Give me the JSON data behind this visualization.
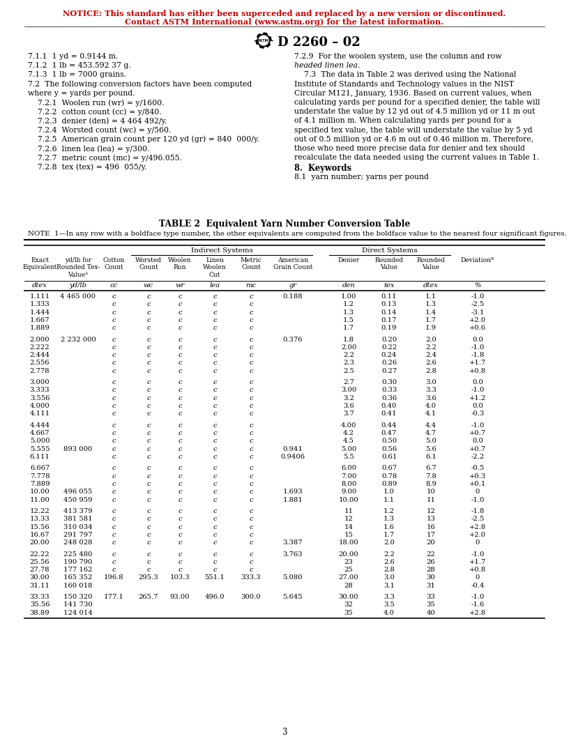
{
  "notice_line1": "NOTICE: This standard has either been superceded and replaced by a new version or discontinued.",
  "notice_line2": "Contact ASTM International (www.astm.org) for the latest information.",
  "notice_color": "#CC0000",
  "bg_color": "#ffffff",
  "table_title": "TABLE 2  Equivalent Yarn Number Conversion Table",
  "note_text": "NOTE  1—In any row with a boldface type number, the other equivalents are computed from the boldface value to the nearest four significant figures.",
  "page_number": "3",
  "table_data": [
    [
      "1.111",
      "4 465 000",
      "c",
      "c",
      "c",
      "c",
      "c",
      "0.188",
      "1.00",
      "0.11",
      "1.1",
      "-1.0"
    ],
    [
      "1.333",
      "",
      "c",
      "c",
      "c",
      "c",
      "c",
      "",
      "1.2",
      "0.13",
      "1.3",
      "-2.5"
    ],
    [
      "1.444",
      "",
      "c",
      "c",
      "c",
      "c",
      "c",
      "",
      "1.3",
      "0.14",
      "1.4",
      "-3.1"
    ],
    [
      "1.667",
      "",
      "c",
      "c",
      "c",
      "c",
      "c",
      "",
      "1.5",
      "0.17",
      "1.7",
      "+2.0"
    ],
    [
      "1.889",
      "",
      "c",
      "c",
      "c",
      "c",
      "c",
      "",
      "1.7",
      "0.19",
      "1.9",
      "+0.6"
    ],
    [
      "GAP",
      "",
      "",
      "",
      "",
      "",
      "",
      "",
      "",
      "",
      "",
      ""
    ],
    [
      "2.000",
      "2 232 000",
      "c",
      "c",
      "c",
      "c",
      "c",
      "0.376",
      "1.8",
      "0.20",
      "2.0",
      "0.0"
    ],
    [
      "2.222",
      "",
      "c",
      "c",
      "c",
      "c",
      "c",
      "",
      "2.00",
      "0.22",
      "2.2",
      "-1.0"
    ],
    [
      "2.444",
      "",
      "c",
      "c",
      "c",
      "c",
      "c",
      "",
      "2.2",
      "0.24",
      "2.4",
      "-1.8"
    ],
    [
      "2.556",
      "",
      "c",
      "c",
      "c",
      "c",
      "c",
      "",
      "2.3",
      "0.26",
      "2.6",
      "+1.7"
    ],
    [
      "2.778",
      "",
      "c",
      "c",
      "c",
      "c",
      "c",
      "",
      "2.5",
      "0.27",
      "2.8",
      "+0.8"
    ],
    [
      "GAP",
      "",
      "",
      "",
      "",
      "",
      "",
      "",
      "",
      "",
      "",
      ""
    ],
    [
      "3.000",
      "",
      "c",
      "c",
      "c",
      "c",
      "c",
      "",
      "2.7",
      "0.30",
      "3.0",
      "0.0"
    ],
    [
      "3.333",
      "",
      "c",
      "c",
      "c",
      "c",
      "c",
      "",
      "3.00",
      "0.33",
      "3.3",
      "-1.0"
    ],
    [
      "3.556",
      "",
      "c",
      "c",
      "c",
      "c",
      "c",
      "",
      "3.2",
      "0.36",
      "3.6",
      "+1.2"
    ],
    [
      "4.000",
      "",
      "c",
      "c",
      "c",
      "c",
      "c",
      "",
      "3.6",
      "0.40",
      "4.0",
      "0.0"
    ],
    [
      "4.111",
      "",
      "c",
      "c",
      "c",
      "c",
      "c",
      "",
      "3.7",
      "0.41",
      "4.1",
      "-0.3"
    ],
    [
      "GAP",
      "",
      "",
      "",
      "",
      "",
      "",
      "",
      "",
      "",
      "",
      ""
    ],
    [
      "4.444",
      "",
      "c",
      "c",
      "c",
      "c",
      "c",
      "",
      "4.00",
      "0.44",
      "4.4",
      "-1.0"
    ],
    [
      "4.667",
      "",
      "c",
      "c",
      "c",
      "c",
      "c",
      "",
      "4.2",
      "0.47",
      "4.7",
      "+0.7"
    ],
    [
      "5.000",
      "",
      "c",
      "c",
      "c",
      "c",
      "c",
      "",
      "4.5",
      "0.50",
      "5.0",
      "0.0"
    ],
    [
      "5.555",
      "893 000",
      "c",
      "c",
      "c",
      "c",
      "c",
      "0.941",
      "5.00",
      "0.56",
      "5.6",
      "+0.7"
    ],
    [
      "6.111",
      "",
      "c",
      "c",
      "c",
      "c",
      "c",
      "0.9406",
      "5.5",
      "0.61",
      "6.1",
      "-2.2"
    ],
    [
      "GAP",
      "",
      "",
      "",
      "",
      "",
      "",
      "",
      "",
      "",
      "",
      ""
    ],
    [
      "6.667",
      "",
      "c",
      "c",
      "c",
      "c",
      "c",
      "",
      "6.00",
      "0.67",
      "6.7",
      "-0.5"
    ],
    [
      "7.778",
      "",
      "c",
      "c",
      "c",
      "c",
      "c",
      "",
      "7.00",
      "0.78",
      "7.8",
      "+0.3"
    ],
    [
      "7.889",
      "",
      "c",
      "c",
      "c",
      "c",
      "c",
      "",
      "8.00",
      "0.89",
      "8.9",
      "+0.1"
    ],
    [
      "10.00",
      "496 055",
      "c",
      "c",
      "c",
      "c",
      "c",
      "1.693",
      "9.00",
      "1.0",
      "10",
      "0"
    ],
    [
      "11.00",
      "450 959",
      "c",
      "c",
      "c",
      "c",
      "c",
      "1.881",
      "10.00",
      "1.1",
      "11",
      "-1.0"
    ],
    [
      "GAP",
      "",
      "",
      "",
      "",
      "",
      "",
      "",
      "",
      "",
      "",
      ""
    ],
    [
      "12.22",
      "413 379",
      "c",
      "c",
      "c",
      "c",
      "c",
      "",
      "11",
      "1.2",
      "12",
      "-1.8"
    ],
    [
      "13.33",
      "381 581",
      "c",
      "c",
      "c",
      "c",
      "c",
      "",
      "12",
      "1.3",
      "13",
      "-2.5"
    ],
    [
      "15.56",
      "310 034",
      "c",
      "c",
      "c",
      "c",
      "c",
      "",
      "14",
      "1.6",
      "16",
      "+2.8"
    ],
    [
      "16.67",
      "291 797",
      "c",
      "c",
      "c",
      "c",
      "c",
      "",
      "15",
      "1.7",
      "17",
      "+2.0"
    ],
    [
      "20.00",
      "248 028",
      "c",
      "c",
      "c",
      "c",
      "c",
      "3.387",
      "18.00",
      "2.0",
      "20",
      "0"
    ],
    [
      "GAP",
      "",
      "",
      "",
      "",
      "",
      "",
      "",
      "",
      "",
      "",
      ""
    ],
    [
      "22.22",
      "225 480",
      "c",
      "c",
      "c",
      "c",
      "c",
      "3.763",
      "20.00",
      "2.2",
      "22",
      "-1.0"
    ],
    [
      "25.56",
      "190 790",
      "c",
      "c",
      "c",
      "c",
      "c",
      "",
      "23",
      "2.6",
      "26",
      "+1.7"
    ],
    [
      "27.78",
      "177 162",
      "c",
      "c",
      "c",
      "c",
      "c",
      "",
      "25",
      "2.8",
      "28",
      "+0.8"
    ],
    [
      "30.00",
      "165 352",
      "196.8",
      "295.3",
      "103.3",
      "551.1",
      "333.3",
      "5.080",
      "27.00",
      "3.0",
      "30",
      "0"
    ],
    [
      "31.11",
      "160 018",
      "",
      "",
      "",
      "",
      "",
      "",
      "28",
      "3.1",
      "31",
      "-0.4"
    ],
    [
      "GAP",
      "",
      "",
      "",
      "",
      "",
      "",
      "",
      "",
      "",
      "",
      ""
    ],
    [
      "33.33",
      "150 320",
      "177.1",
      "265.7",
      "93.00",
      "496.0",
      "300.0",
      "5.645",
      "30.00",
      "3.3",
      "33",
      "-1.0"
    ],
    [
      "35.56",
      "141 730",
      "",
      "",
      "",
      "",
      "",
      "",
      "32",
      "3.5",
      "35",
      "-1.6"
    ],
    [
      "38.89",
      "124 014",
      "",
      "",
      "",
      "",
      "",
      "",
      "35",
      "4.0",
      "40",
      "+2.8"
    ]
  ]
}
